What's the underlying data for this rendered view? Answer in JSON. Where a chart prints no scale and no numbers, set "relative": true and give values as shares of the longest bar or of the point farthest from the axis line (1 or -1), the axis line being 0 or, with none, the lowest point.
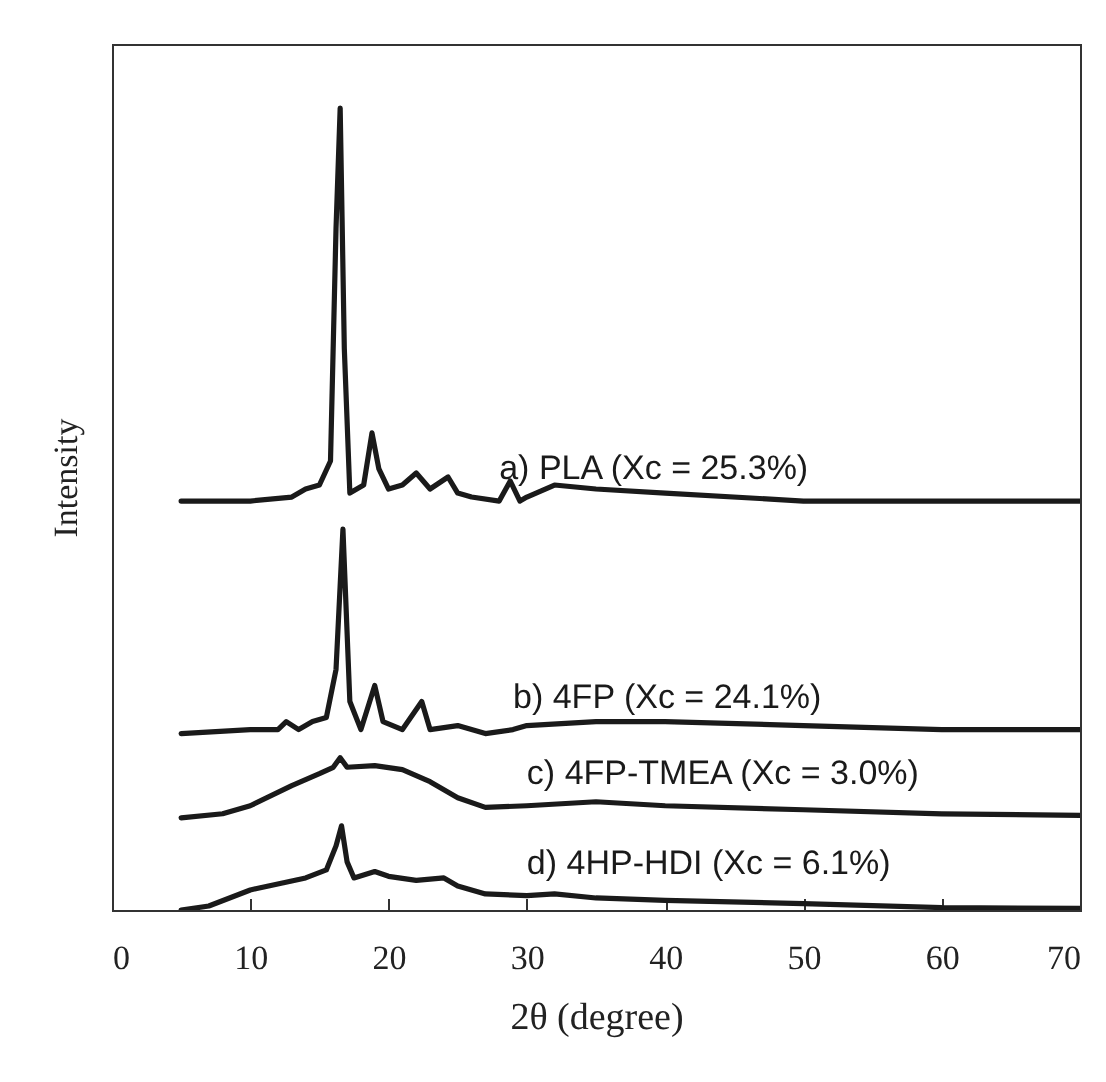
{
  "chart_data": {
    "type": "line",
    "relative": true,
    "xlabel": "2θ (degree)",
    "ylabel": "Intensity",
    "xlim": [
      0,
      70
    ],
    "xticks": [
      0,
      10,
      20,
      30,
      40,
      50,
      60,
      70
    ],
    "series": [
      {
        "name": "a) PLA (Xc = 25.3%)",
        "color": "#1a1a1a",
        "x": [
          5,
          10,
          13,
          14,
          15,
          15.8,
          16.2,
          16.5,
          16.8,
          17.2,
          18.2,
          18.8,
          19.3,
          20,
          21,
          22,
          23,
          24.3,
          25,
          26,
          28,
          28.8,
          29.5,
          30,
          32,
          35,
          40,
          50,
          60,
          70
        ],
        "values": [
          0.51,
          0.51,
          0.515,
          0.525,
          0.53,
          0.56,
          0.85,
          1.0,
          0.7,
          0.52,
          0.53,
          0.595,
          0.55,
          0.525,
          0.53,
          0.545,
          0.525,
          0.54,
          0.52,
          0.515,
          0.51,
          0.535,
          0.51,
          0.515,
          0.53,
          0.525,
          0.52,
          0.51,
          0.51,
          0.51
        ]
      },
      {
        "name": "b) 4FP (Xc = 24.1%)",
        "color": "#1a1a1a",
        "x": [
          5,
          10,
          12,
          12.6,
          13.5,
          14.5,
          15.5,
          16.2,
          16.7,
          17.2,
          18,
          19,
          19.6,
          21,
          22.4,
          23,
          25,
          27,
          29,
          30,
          35,
          40,
          50,
          60,
          70
        ],
        "values": [
          0.22,
          0.225,
          0.225,
          0.235,
          0.225,
          0.235,
          0.24,
          0.3,
          0.475,
          0.26,
          0.225,
          0.28,
          0.235,
          0.225,
          0.26,
          0.225,
          0.23,
          0.22,
          0.225,
          0.23,
          0.235,
          0.235,
          0.23,
          0.225,
          0.225
        ]
      },
      {
        "name": "c) 4FP-TMEA (Xc = 3.0%)",
        "color": "#1a1a1a",
        "x": [
          5,
          8,
          10,
          13,
          15,
          16,
          16.5,
          17,
          19,
          21,
          23,
          25,
          27,
          30,
          35,
          40,
          50,
          60,
          70
        ],
        "values": [
          0.115,
          0.12,
          0.13,
          0.155,
          0.17,
          0.178,
          0.19,
          0.178,
          0.18,
          0.175,
          0.16,
          0.14,
          0.128,
          0.13,
          0.135,
          0.13,
          0.125,
          0.12,
          0.118
        ]
      },
      {
        "name": "d) 4HP-HDI  (Xc = 6.1%)",
        "color": "#1a1a1a",
        "x": [
          5,
          7,
          10,
          14,
          15.5,
          16.2,
          16.6,
          17,
          17.5,
          19,
          20,
          22,
          24,
          25,
          27,
          30,
          32,
          35,
          40,
          50,
          60,
          70
        ],
        "values": [
          0,
          0.005,
          0.025,
          0.04,
          0.05,
          0.08,
          0.105,
          0.06,
          0.04,
          0.048,
          0.042,
          0.037,
          0.04,
          0.03,
          0.02,
          0.018,
          0.02,
          0.015,
          0.012,
          0.008,
          0.003,
          0.002
        ]
      }
    ]
  }
}
